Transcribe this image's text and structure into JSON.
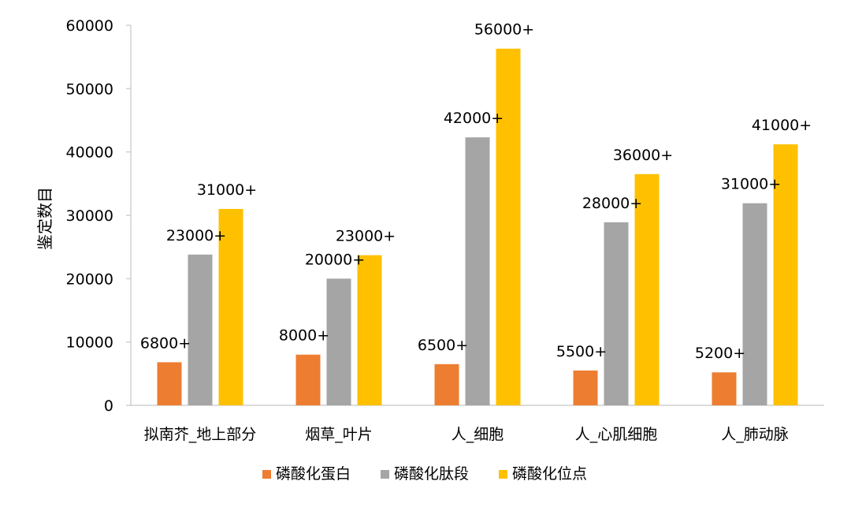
{
  "chart_data": {
    "type": "bar",
    "title": "",
    "xlabel": "",
    "ylabel": "鉴定数目",
    "ylim": [
      0,
      60000
    ],
    "yticks": [
      0,
      10000,
      20000,
      30000,
      40000,
      50000,
      60000
    ],
    "grid": false,
    "legend_position": "bottom",
    "categories": [
      "拟南芥_地上部分",
      "烟草_叶片",
      "人_细胞",
      "人_心肌细胞",
      "人_肺动脉"
    ],
    "series": [
      {
        "name": "磷酸化蛋白",
        "color": "#ED7D31",
        "values": [
          6800,
          8000,
          6500,
          5500,
          5200
        ],
        "labels": [
          "6800+",
          "8000+",
          "6500+",
          "5500+",
          "5200+"
        ]
      },
      {
        "name": "磷酸化肽段",
        "color": "#A5A5A5",
        "values": [
          23800,
          20000,
          42300,
          28900,
          31900
        ],
        "labels": [
          "23000+",
          "20000+",
          "42000+",
          "28000+",
          "31000+"
        ]
      },
      {
        "name": "磷酸化位点",
        "color": "#FFC000",
        "values": [
          31000,
          23700,
          56300,
          36500,
          41200
        ],
        "labels": [
          "31000+",
          "23000+",
          "56000+",
          "36000+",
          "41000+"
        ]
      }
    ]
  }
}
